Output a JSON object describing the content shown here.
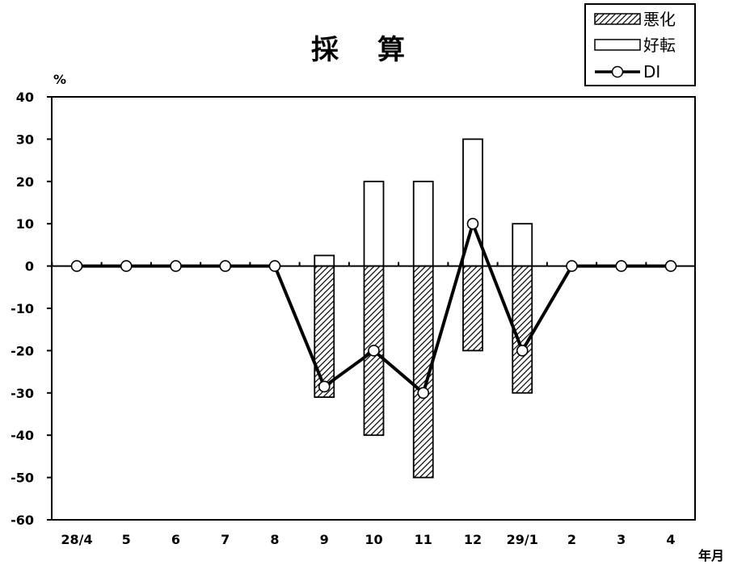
{
  "chart_data": {
    "type": "bar",
    "title": "採算",
    "ylabel": "%",
    "xlabel": "年月",
    "ylim": [
      -60,
      40
    ],
    "yticks": [
      40,
      30,
      20,
      10,
      0,
      -10,
      -20,
      -30,
      -40,
      -50,
      -60
    ],
    "categories": [
      "28/4",
      "5",
      "6",
      "7",
      "8",
      "9",
      "10",
      "11",
      "12",
      "29/1",
      "2",
      "3",
      "4"
    ],
    "legend_position": "top-right",
    "grid": false,
    "series": [
      {
        "name": "悪化",
        "kind": "bar",
        "pattern": "diagonal-hatch",
        "color": "#000000",
        "values": [
          0,
          0,
          0,
          0,
          0,
          -31,
          -40,
          -50,
          -20,
          -30,
          0,
          0,
          0
        ]
      },
      {
        "name": "好転",
        "kind": "bar",
        "pattern": "none",
        "color": "#000000",
        "values": [
          0,
          0,
          0,
          0,
          0,
          2.5,
          20,
          20,
          30,
          10,
          0,
          0,
          0
        ]
      },
      {
        "name": "DI",
        "kind": "line",
        "marker": "open-circle",
        "color": "#000000",
        "values": [
          0,
          0,
          0,
          0,
          0,
          -28.5,
          -20,
          -30,
          10,
          -20,
          0,
          0,
          0
        ]
      }
    ]
  }
}
